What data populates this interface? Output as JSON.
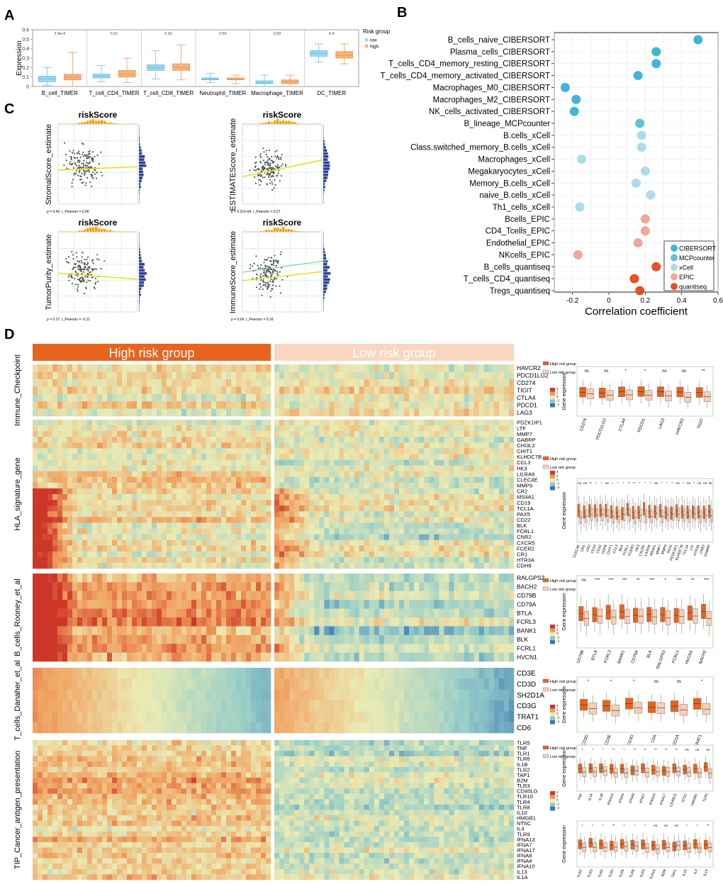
{
  "panels": {
    "A": "A",
    "B": "B",
    "C": "C",
    "D": "D"
  },
  "colors": {
    "low": "#9ed8ec",
    "high": "#f7b27a",
    "highGroup": "#e8631d",
    "lowGroup": "#f9d6bf",
    "CIBERSORT": "#3fb6d9",
    "MCPcounter": "#5bc3d4",
    "xCell": "#acdcea",
    "EPIC": "#f0a69a",
    "quantiseq": "#e3502a"
  },
  "chart_data": [
    {
      "id": "A",
      "type": "box",
      "ylabel": "Expression",
      "ylim": [
        0,
        0.6
      ],
      "yticks": [
        "0",
        "0.1",
        "0.2",
        "0.3",
        "0.4",
        "0.5",
        "0.6"
      ],
      "legend": {
        "title": "Risk group",
        "items": [
          "low",
          "high"
        ]
      },
      "categories": [
        "B_cell_TIMER",
        "T_cell_CD4_TIMER",
        "T_cell_CD8_TIMER",
        "Neutrophil_TIMER",
        "Macrophage_TIMER",
        "DC_TIMER"
      ],
      "pvalues": [
        "2.9e-4",
        "0.01",
        "0.02",
        "0.59",
        "0.59",
        "0.4"
      ],
      "series": [
        {
          "name": "low",
          "stats": [
            [
              0.01,
              0.05,
              0.08,
              0.11,
              0.2
            ],
            [
              0.05,
              0.09,
              0.11,
              0.13,
              0.22
            ],
            [
              0.08,
              0.17,
              0.2,
              0.23,
              0.38
            ],
            [
              0.04,
              0.07,
              0.08,
              0.09,
              0.14
            ],
            [
              0.0,
              0.03,
              0.04,
              0.06,
              0.12
            ],
            [
              0.26,
              0.32,
              0.35,
              0.38,
              0.45
            ]
          ]
        },
        {
          "name": "high",
          "stats": [
            [
              0.0,
              0.07,
              0.1,
              0.13,
              0.36
            ],
            [
              0.04,
              0.1,
              0.13,
              0.17,
              0.3
            ],
            [
              0.07,
              0.17,
              0.2,
              0.24,
              0.44
            ],
            [
              0.03,
              0.07,
              0.08,
              0.09,
              0.12
            ],
            [
              0.0,
              0.03,
              0.05,
              0.07,
              0.12
            ],
            [
              0.24,
              0.3,
              0.33,
              0.37,
              0.45
            ]
          ]
        }
      ]
    },
    {
      "id": "B",
      "type": "dot",
      "xlabel": "Correlation coefficient",
      "xlim": [
        -0.3,
        0.6
      ],
      "xticks": [
        "-0.2",
        "0",
        "0.2",
        "0.4",
        "0.6"
      ],
      "legend": [
        "CIBERSORT",
        "MCPcounter",
        "xCell",
        "EPIC",
        "quantiseq"
      ],
      "points": [
        {
          "label": "B_cells_naive_CIBERSORT",
          "value": 0.49,
          "method": "CIBERSORT"
        },
        {
          "label": "Plasma_cells_CIBERSORT",
          "value": 0.26,
          "method": "CIBERSORT"
        },
        {
          "label": "T_cells_CD4_memory_resting_CIBERSORT",
          "value": 0.26,
          "method": "CIBERSORT"
        },
        {
          "label": "T_cells_CD4_memory_activated_CIBERSORT",
          "value": 0.16,
          "method": "CIBERSORT"
        },
        {
          "label": "Macrophages_M0_CIBERSORT",
          "value": -0.24,
          "method": "CIBERSORT"
        },
        {
          "label": "Macrophages_M2_CIBERSORT",
          "value": -0.18,
          "method": "CIBERSORT"
        },
        {
          "label": "NK_cells_activated_CIBERSORT",
          "value": -0.19,
          "method": "CIBERSORT"
        },
        {
          "label": "B_lineage_MCPcounter",
          "value": 0.17,
          "method": "MCPcounter"
        },
        {
          "label": "B.cells_xCell",
          "value": 0.18,
          "method": "xCell"
        },
        {
          "label": "Class.switched_memory_B.cells_xCell",
          "value": 0.18,
          "method": "xCell"
        },
        {
          "label": "Macrophages_xCell",
          "value": -0.15,
          "method": "xCell"
        },
        {
          "label": "Megakaryocytes_xCell",
          "value": 0.2,
          "method": "xCell"
        },
        {
          "label": "Memory_B.cells_xCell",
          "value": 0.15,
          "method": "xCell"
        },
        {
          "label": "naive_B.cells_xCell",
          "value": 0.23,
          "method": "xCell"
        },
        {
          "label": "Th1_cells_xCell",
          "value": -0.16,
          "method": "xCell"
        },
        {
          "label": "Bcells_EPIC",
          "value": 0.2,
          "method": "EPIC"
        },
        {
          "label": "CD4_Tcells_EPIC",
          "value": 0.2,
          "method": "EPIC"
        },
        {
          "label": "Endothelial_EPIC",
          "value": 0.16,
          "method": "EPIC"
        },
        {
          "label": "NKcells_EPIC",
          "value": -0.17,
          "method": "EPIC"
        },
        {
          "label": "B_cells_quantiseq",
          "value": 0.26,
          "method": "quantiseq"
        },
        {
          "label": "T_cells_CD4_quantiseq",
          "value": 0.14,
          "method": "quantiseq"
        },
        {
          "label": "Tregs_quantiseq",
          "value": 0.17,
          "method": "quantiseq"
        }
      ]
    },
    {
      "id": "C",
      "type": "scatter",
      "title": "riskScore",
      "plots": [
        {
          "ylabel": "StromalScore_estimate",
          "stat": "p = 0.42, r_Pearson = 0.06",
          "slope": 0.06
        },
        {
          "ylabel": "ESTIMATEScore_estimate",
          "stat": "p = 5.21e-04, r_Pearson = 0.27",
          "slope": 0.3
        },
        {
          "ylabel": "TumorPurity_estimate",
          "stat": "p = 0.17, r_Pearson = -0.11",
          "slope": -0.11
        },
        {
          "ylabel": "ImmuneScore_estimate",
          "stat": "p = 0.04, r_Pearson = 0.16",
          "slope": 0.16
        }
      ]
    },
    {
      "id": "D",
      "type": "heatmap",
      "groups": [
        "High risk group",
        "Low risk group"
      ],
      "heatLegend": [
        "4",
        "2",
        "0",
        "-2",
        "-4"
      ],
      "boxLegend": [
        "High risk group",
        "Low risk group"
      ],
      "boxYLabel": "Gene expression",
      "sections": [
        {
          "name": "Immune_Checkpoint",
          "genes": [
            "HAVCR2",
            "PDCD1LG2",
            "CD274",
            "TIGIT",
            "CTLA4",
            "PDCD1",
            "LAG3"
          ],
          "boxGenes": [
            "CD274",
            "PDCD1LG2",
            "CTLA4",
            "PDCD1",
            "LAG3",
            "HAVCR2",
            "TIGIT"
          ],
          "sig": [
            "ns",
            "ns",
            "*",
            "*",
            "ns",
            "ns",
            "**"
          ]
        },
        {
          "name": "HLA_signature_gene",
          "genes": [
            "PDZK1IP1",
            "LTF",
            "MMP7",
            "GABRP",
            "CHI3L2",
            "CHIT1",
            "KLHDC7B",
            "CCL3",
            "HK3",
            "LILRA6",
            "CLEC4E",
            "MMP9",
            "CR2",
            "MS4A1",
            "CD19",
            "TCL1A",
            "PAX5",
            "CD22",
            "BLK",
            "FCRL1",
            "CNR2",
            "CXCR5",
            "FCER2",
            "CR1",
            "HTR3A",
            "CDH8"
          ],
          "boxGenes": [
            "CLEC4E",
            "CR1",
            "CR2",
            "CD19",
            "CD22",
            "CDH8",
            "CHIT1",
            "CCL3",
            "BLK",
            "FCRL1",
            "FCER2",
            "HK3",
            "CXCR5",
            "LILRA6",
            "MS4A1",
            "MMP7",
            "MMP9",
            "PAX5",
            "PDZK1IP1",
            "KLHDC7B",
            "TCL1A",
            "LTF",
            "HTR3A",
            "CNR2",
            "GABRP"
          ],
          "sig": [
            "ns",
            "ns",
            "**",
            "*",
            "*",
            "ns",
            "*",
            "*",
            "*",
            "**",
            "**",
            "*",
            "*",
            "*",
            "ns",
            "*",
            "*",
            "*",
            "ns",
            "*",
            "ns",
            "*",
            "ns",
            "ns",
            "ns"
          ]
        },
        {
          "name": "B_cells_Rooney_et_al",
          "genes": [
            "RALGPS2",
            "BACH2",
            "CD79B",
            "CD79A",
            "BTLA",
            "FCRL3",
            "BANK1",
            "BLK",
            "FCRL1",
            "HVCN1"
          ],
          "boxGenes": [
            "CD79B",
            "BTLA",
            "FCRL3",
            "BANK1",
            "CD79A",
            "BLK",
            "RALGPS2",
            "FCRL1",
            "HVCN1",
            "BACH2"
          ],
          "sig": [
            "ns",
            "***",
            "***",
            "***",
            "**",
            "***",
            "*",
            "***",
            "**",
            "***"
          ]
        },
        {
          "name": "T_cells_Danaher_et_al",
          "genes": [
            "CD3E",
            "CD3D",
            "SH2D1A",
            "CD3G",
            "TRAT1",
            "CD6"
          ],
          "boxGenes": [
            "CD3D",
            "CD3E",
            "CD3G",
            "CD6",
            "SH2D1A",
            "TRAT1"
          ],
          "sig": [
            "*",
            "*",
            "*",
            "ns",
            "ns",
            "*"
          ]
        },
        {
          "name": "TIP_Cancer_antigen_presentation",
          "genes": [
            "TLR5",
            "TNF",
            "TLR1",
            "TLR6",
            "IL1B",
            "TLR2",
            "TAP1",
            "B2M",
            "TLR3",
            "CD40LG",
            "TLR10",
            "TLR4",
            "TLR8",
            "IL10",
            "HMGB1",
            "NT5C",
            "IL4",
            "TLR9",
            "IFNA13",
            "IFNA7",
            "IFNA17",
            "IFNA8",
            "IFNA4",
            "IFNA10",
            "IL13",
            "IL1A"
          ],
          "boxGenes": [
            "TNF",
            "IL1A",
            "IL1B",
            "IFNA13",
            "IFNA4",
            "IFNA8",
            "IFNA7",
            "IFNA10",
            "IFNA17",
            "CD40LG",
            "NT5C",
            "HMGB1",
            "TLR1"
          ],
          "sig": [
            "*",
            "*",
            "*",
            "**",
            "*",
            "**",
            "**",
            "**",
            "**",
            "**",
            "ns",
            "ns",
            "ns"
          ],
          "boxGenes2": [
            "TLR2",
            "TLR3",
            "TLR4",
            "TLR5",
            "TLR6",
            "TLR8",
            "TLR9",
            "TLR10",
            "B2M",
            "TAP1",
            "IL10",
            "IL4",
            "IL13"
          ],
          "sig2": [
            "*",
            "*",
            "*",
            "**",
            "*",
            "*",
            "*",
            "ns",
            "ns",
            "ns",
            "*",
            "*",
            "**"
          ]
        }
      ]
    }
  ]
}
